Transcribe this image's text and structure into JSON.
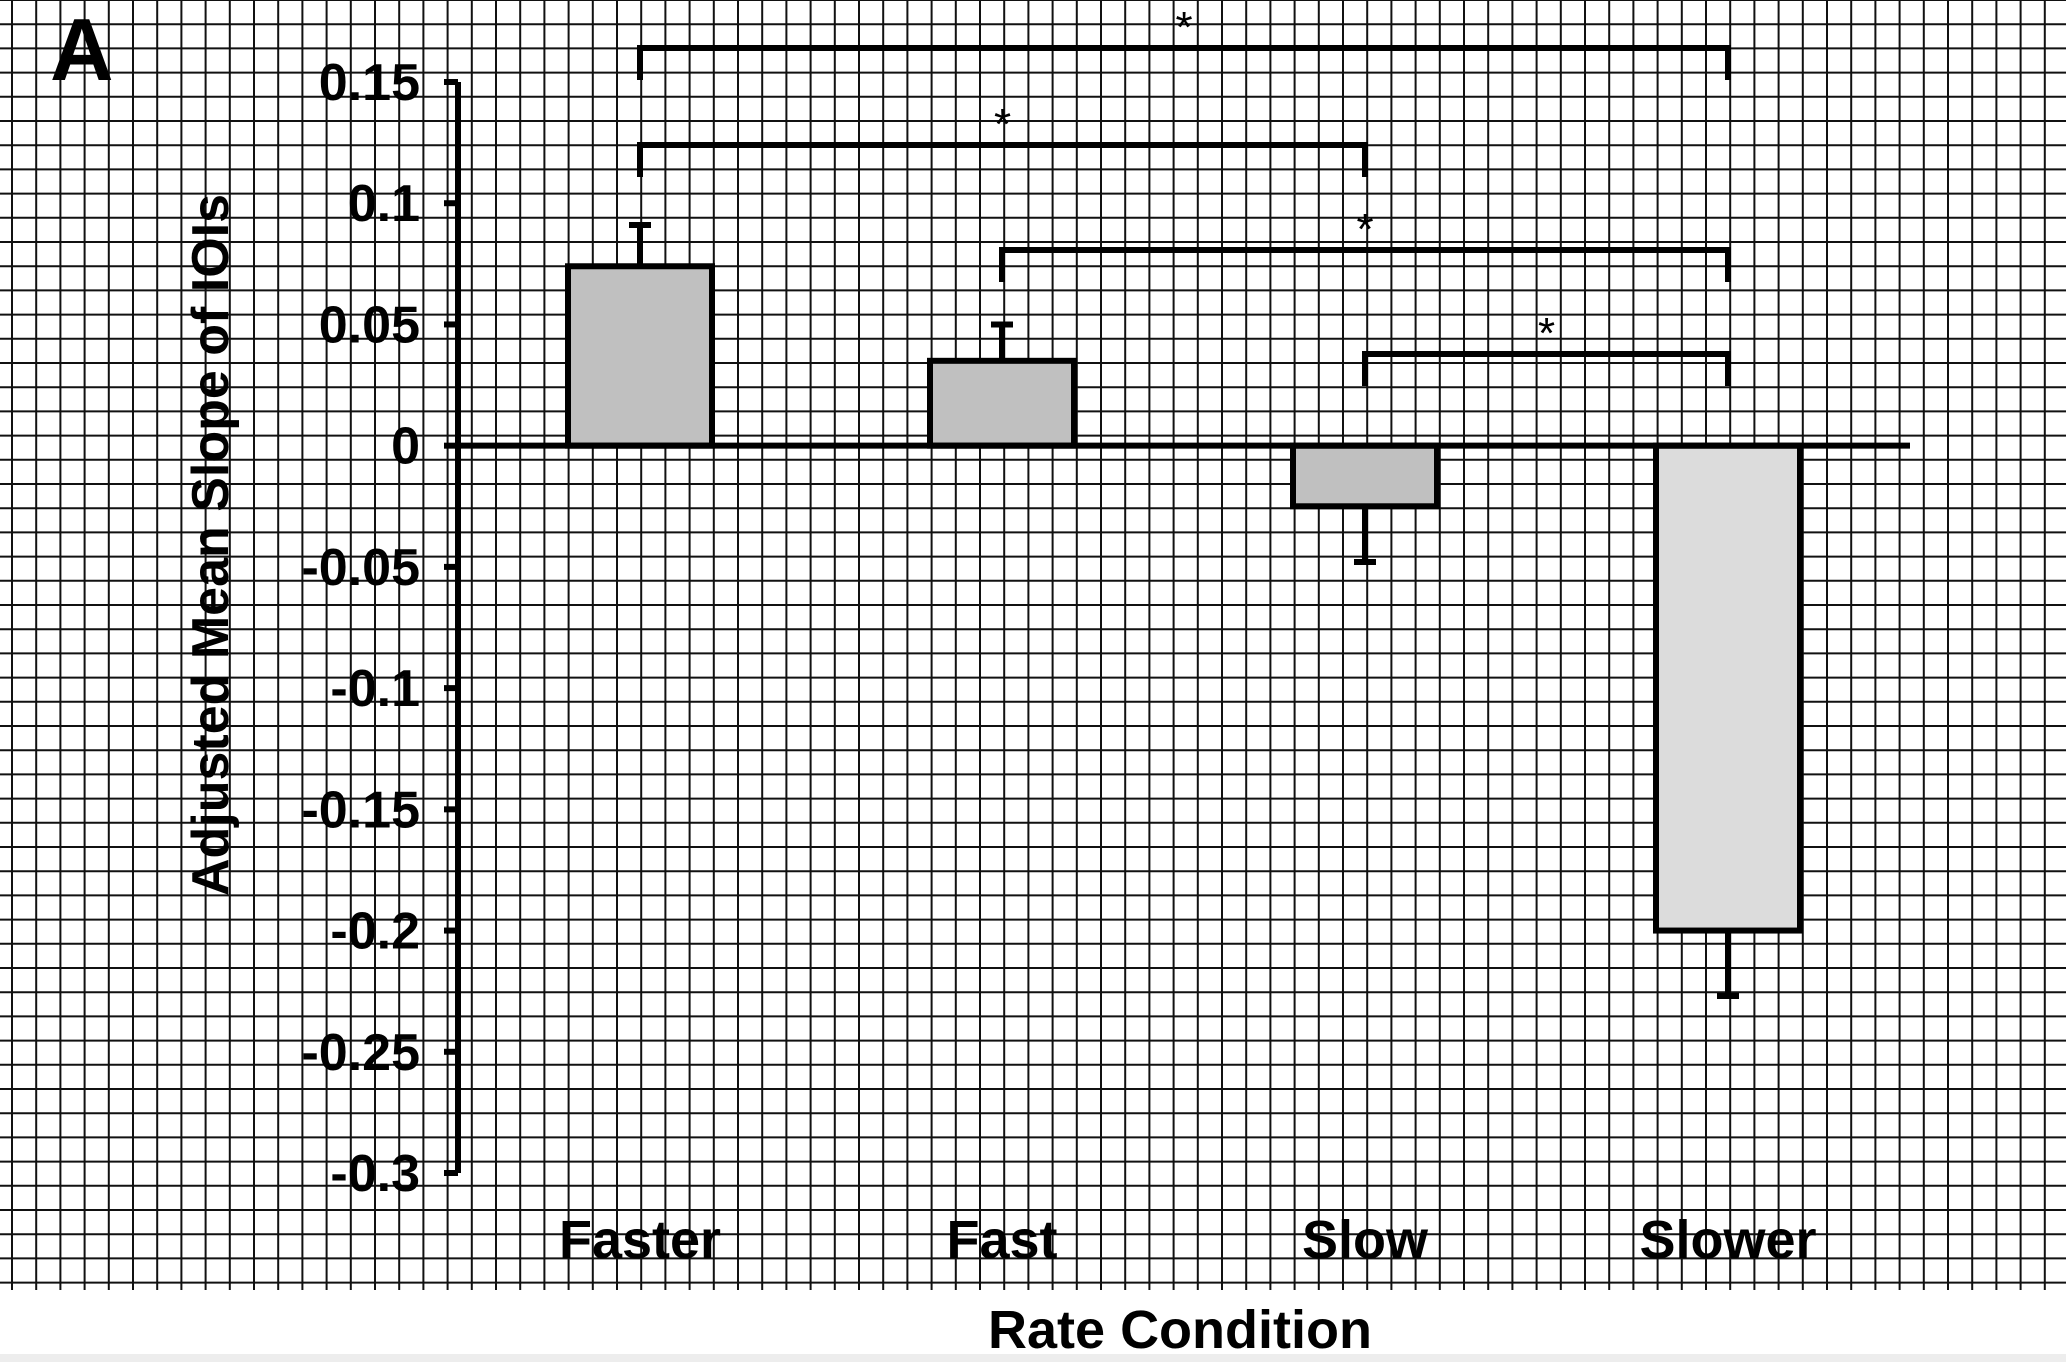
{
  "panel_label": "A",
  "chart_data": {
    "type": "bar",
    "title": "",
    "xlabel": "Rate Condition",
    "ylabel": "Adjusted Mean Slope of IOIs",
    "ylim": [
      -0.3,
      0.15
    ],
    "yticks": [
      0.15,
      0.1,
      0.05,
      0,
      -0.05,
      -0.1,
      -0.15,
      -0.2,
      -0.25,
      -0.3
    ],
    "ytick_labels": [
      "0.15",
      "0.1",
      "0.05",
      "0",
      "-0.05",
      "-0.1",
      "-0.15",
      "-0.2",
      "-0.25",
      "-0.3"
    ],
    "categories": [
      "Faster",
      "Fast",
      "Slow",
      "Slower"
    ],
    "values": [
      0.074,
      0.035,
      -0.025,
      -0.2
    ],
    "errors": [
      0.017,
      0.015,
      0.023,
      0.027
    ],
    "bar_colors": [
      "#c0c0c0",
      "#c0c0c0",
      "#c0c0c0",
      "#dcdcdc"
    ],
    "grid": true,
    "significance": [
      {
        "from": "Faster",
        "to": "Slower",
        "label": "*"
      },
      {
        "from": "Faster",
        "to": "Slow",
        "label": "*"
      },
      {
        "from": "Fast",
        "to": "Slower",
        "label": "*"
      },
      {
        "from": "Slow",
        "to": "Slower",
        "label": "*"
      }
    ]
  }
}
